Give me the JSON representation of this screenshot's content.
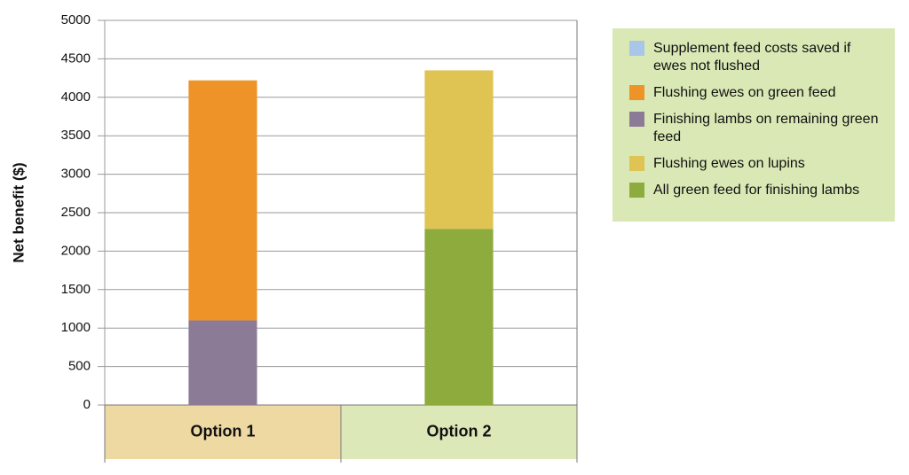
{
  "chart_data": {
    "type": "stacked-bar",
    "y_label": "Net benefit ($)",
    "categories": [
      "Option 1",
      "Option 2"
    ],
    "category_colors": [
      "#eed9a3",
      "#dde8b8"
    ],
    "series": [
      {
        "name": "Supplement feed costs saved if ewes not flushed",
        "color": "#a9c6e8",
        "values": [
          null,
          null
        ]
      },
      {
        "name": "Flushing ewes on green feed",
        "color": "#ee9328",
        "values": [
          3120,
          null
        ]
      },
      {
        "name": "Finishing lambs on remaining green feed",
        "color": "#8c7b96",
        "values": [
          1100,
          null
        ]
      },
      {
        "name": "Flushing ewes on lupins",
        "color": "#dfc353",
        "values": [
          null,
          2060
        ]
      },
      {
        "name": "All green feed for finishing lambs",
        "color": "#8eac3e",
        "values": [
          null,
          2290
        ]
      }
    ],
    "ylim": [
      0,
      5000
    ],
    "yticks": [
      0,
      500,
      1000,
      1500,
      2000,
      2500,
      3000,
      3500,
      4000,
      4500,
      5000
    ],
    "grid": true,
    "legend_position": "right",
    "legend_background": "#d9e8b5"
  }
}
